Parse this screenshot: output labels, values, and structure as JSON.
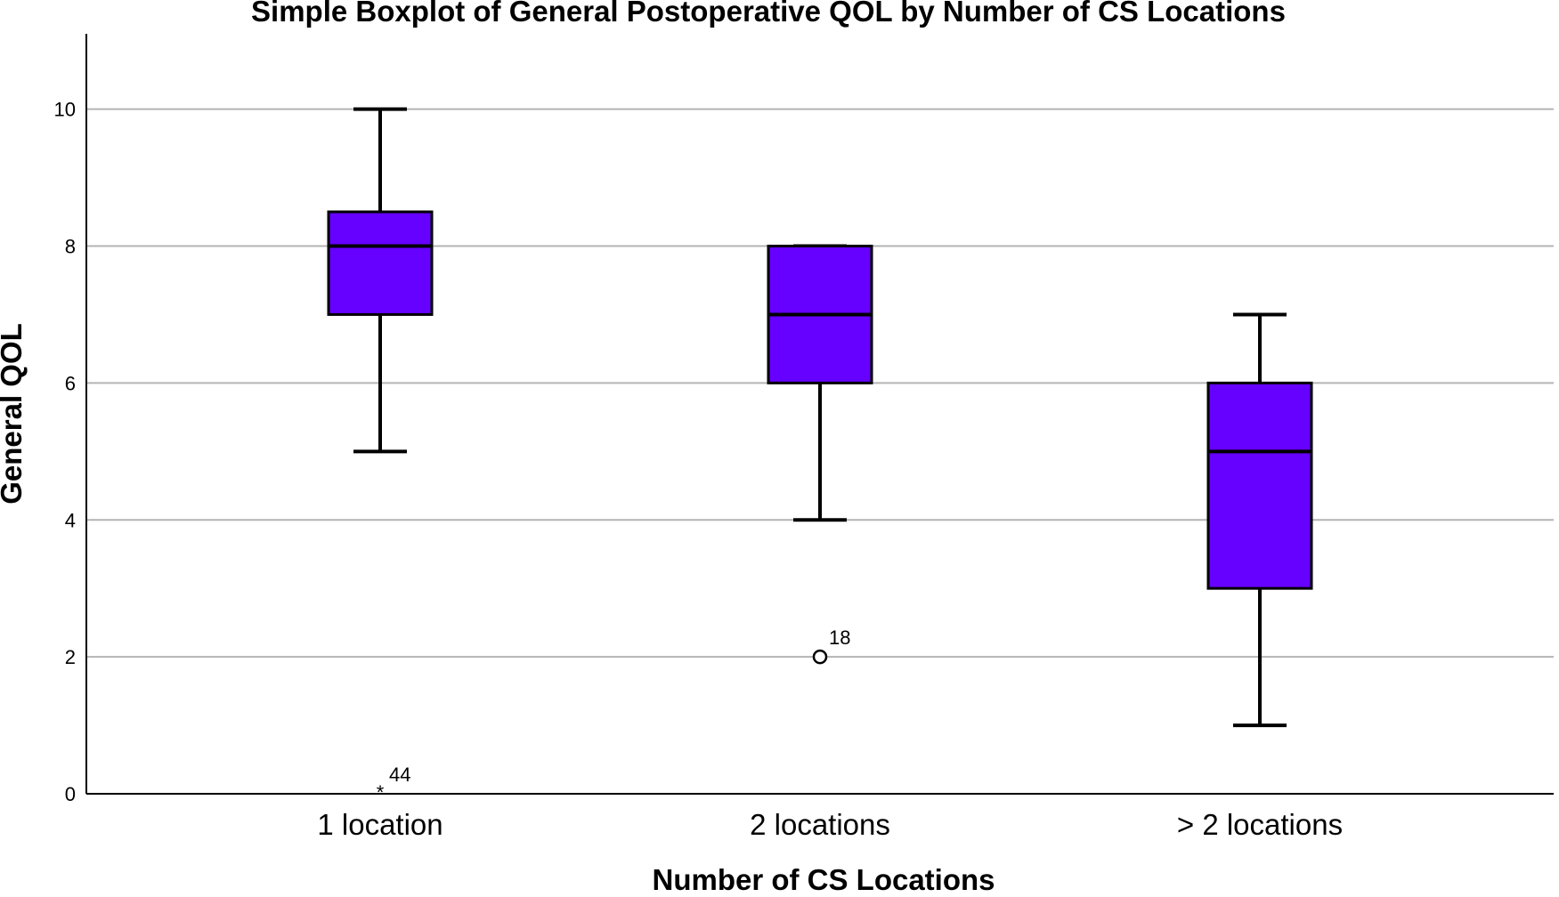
{
  "chart_data": {
    "type": "boxplot",
    "title": "Simple Boxplot of General Postoperative QOL by Number of CS Locations",
    "xlabel": "Number of CS Locations",
    "ylabel": "General QOL",
    "ylim": [
      0,
      11.1
    ],
    "yticks": [
      "0",
      "2",
      "4",
      "6",
      "8",
      "10"
    ],
    "ytick_values": [
      0,
      2,
      4,
      6,
      8,
      10
    ],
    "grid": "horizontal",
    "box_color": "#6600ff",
    "categories": [
      "1 location",
      "2 locations",
      "> 2 locations"
    ],
    "boxes": [
      {
        "category": "1 location",
        "whisker_low": 5,
        "q1": 7,
        "median": 8,
        "q3": 8.5,
        "whisker_high": 10,
        "outliers": [
          {
            "value": 0,
            "label": "44",
            "marker": "star"
          }
        ]
      },
      {
        "category": "2 locations",
        "whisker_low": 4,
        "q1": 6,
        "median": 7,
        "q3": 8,
        "whisker_high": 8,
        "outliers": [
          {
            "value": 2,
            "label": "18",
            "marker": "circle"
          }
        ]
      },
      {
        "category": "> 2 locations",
        "whisker_low": 1,
        "q1": 3,
        "median": 5,
        "q3": 6,
        "whisker_high": 7,
        "outliers": []
      }
    ]
  }
}
